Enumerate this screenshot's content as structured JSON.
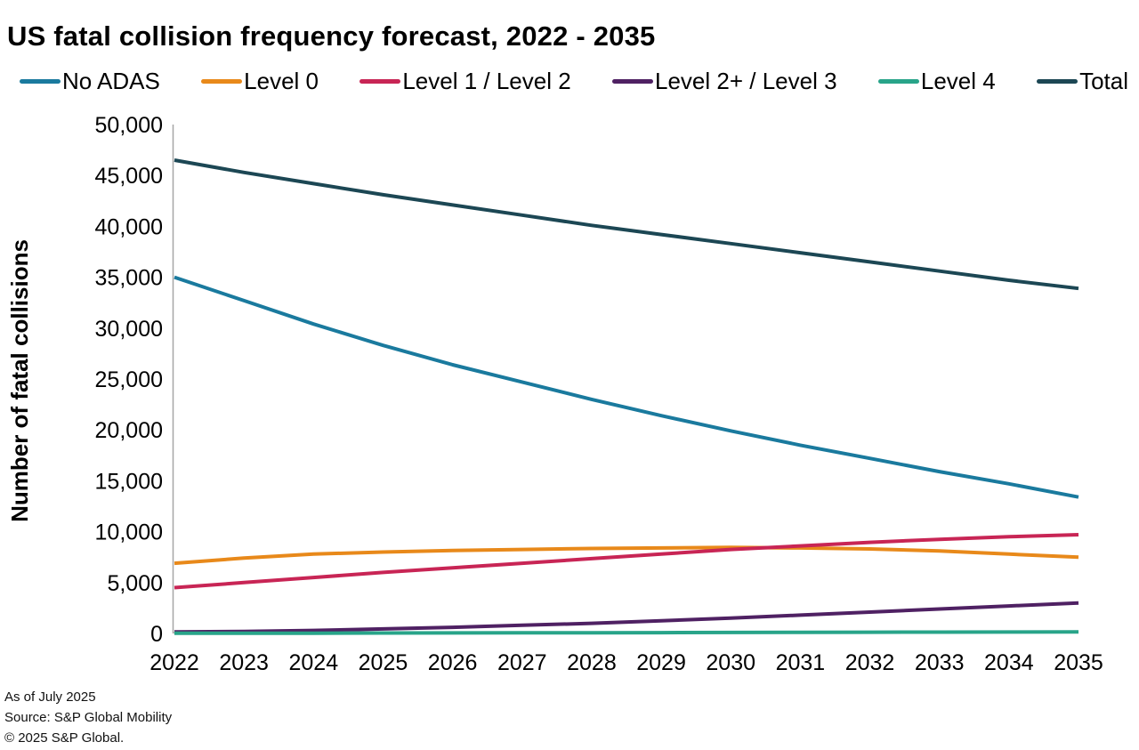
{
  "title": "US fatal collision frequency forecast, 2022 - 2035",
  "footer": {
    "as_of": "As of July 2025",
    "source": "Source: S&P Global Mobility",
    "copyright": "© 2025 S&P Global."
  },
  "colors": {
    "axis": "#a6a6a6",
    "text": "#000000"
  },
  "chart_data": {
    "type": "line",
    "title": "US fatal collision frequency forecast, 2022 - 2035",
    "xlabel": "",
    "ylabel": "Number of fatal collisions",
    "ylim": [
      0,
      50000
    ],
    "ytick_step": 5000,
    "grid": false,
    "legend_position": "top",
    "x": [
      2022,
      2023,
      2024,
      2025,
      2026,
      2027,
      2028,
      2029,
      2030,
      2031,
      2032,
      2033,
      2034,
      2035
    ],
    "series": [
      {
        "name": "No ADAS",
        "color": "#1a7a9e",
        "values": [
          35000,
          32700,
          30400,
          28300,
          26400,
          24700,
          23000,
          21400,
          19900,
          18500,
          17200,
          15900,
          14700,
          13400
        ]
      },
      {
        "name": "Level 0",
        "color": "#e8891a",
        "values": [
          6900,
          7400,
          7800,
          8000,
          8150,
          8250,
          8350,
          8400,
          8450,
          8400,
          8300,
          8100,
          7800,
          7500
        ]
      },
      {
        "name": "Level 1 / Level 2",
        "color": "#c82555",
        "values": [
          4500,
          5000,
          5500,
          6000,
          6450,
          6900,
          7350,
          7800,
          8250,
          8600,
          8950,
          9250,
          9500,
          9700
        ]
      },
      {
        "name": "Level 2+ / Level 3",
        "color": "#4f2163",
        "values": [
          150,
          200,
          300,
          450,
          600,
          800,
          1000,
          1250,
          1500,
          1800,
          2100,
          2400,
          2700,
          3000
        ]
      },
      {
        "name": "Level 4",
        "color": "#28a489",
        "values": [
          20,
          20,
          30,
          40,
          50,
          60,
          70,
          80,
          100,
          110,
          120,
          130,
          140,
          150
        ]
      },
      {
        "name": "Total",
        "color": "#1c4754",
        "values": [
          46500,
          45300,
          44200,
          43100,
          42100,
          41100,
          40100,
          39200,
          38300,
          37400,
          36500,
          35600,
          34700,
          33900
        ]
      }
    ]
  }
}
